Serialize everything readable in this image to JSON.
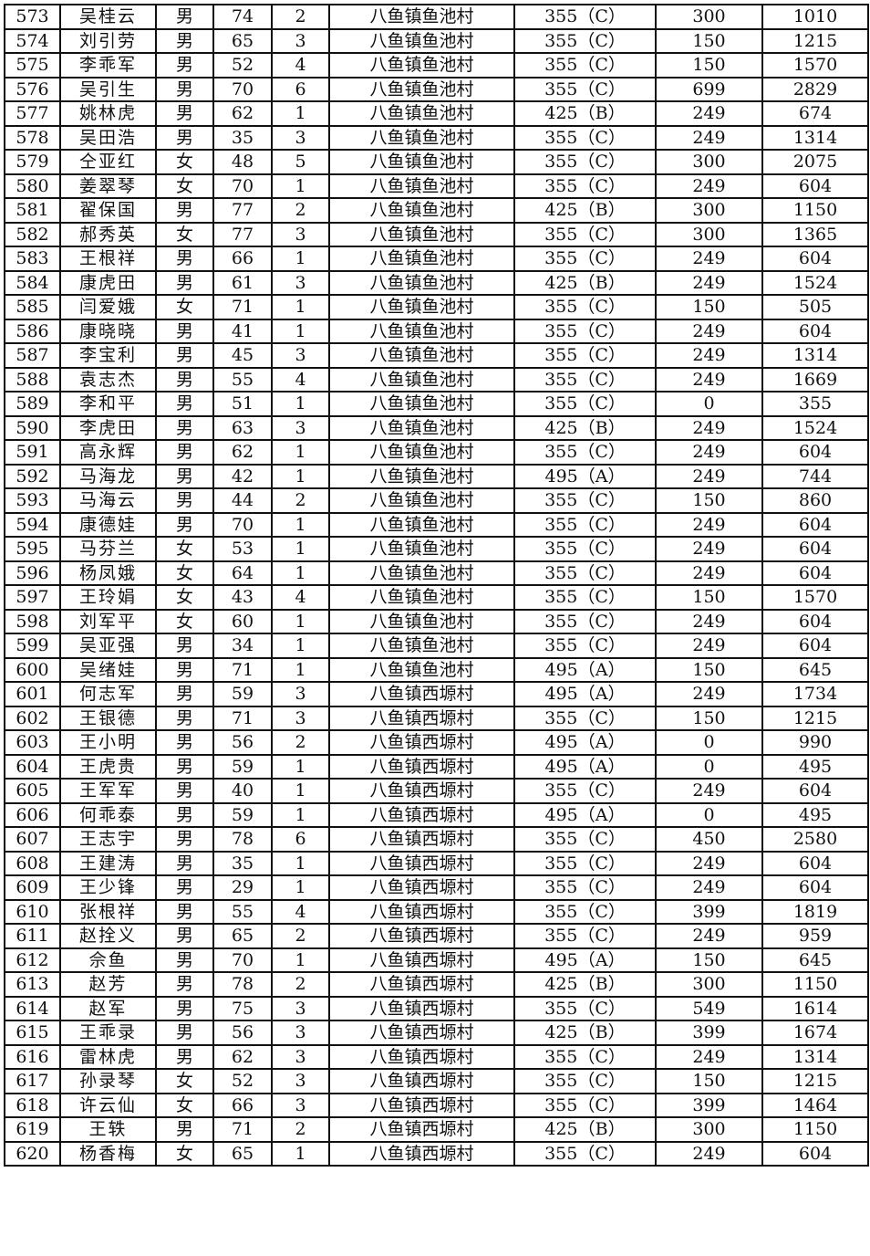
{
  "rows": [
    [
      "573",
      "吴桂云",
      "男",
      "74",
      "2",
      "八鱼镇鱼池村",
      "355（C）",
      "300",
      "1010"
    ],
    [
      "574",
      "刘引劳",
      "男",
      "65",
      "3",
      "八鱼镇鱼池村",
      "355（C）",
      "150",
      "1215"
    ],
    [
      "575",
      "李乖军",
      "男",
      "52",
      "4",
      "八鱼镇鱼池村",
      "355（C）",
      "150",
      "1570"
    ],
    [
      "576",
      "吴引生",
      "男",
      "70",
      "6",
      "八鱼镇鱼池村",
      "355（C）",
      "699",
      "2829"
    ],
    [
      "577",
      "姚林虎",
      "男",
      "62",
      "1",
      "八鱼镇鱼池村",
      "425（B）",
      "249",
      "674"
    ],
    [
      "578",
      "吴田浩",
      "男",
      "35",
      "3",
      "八鱼镇鱼池村",
      "355（C）",
      "249",
      "1314"
    ],
    [
      "579",
      "仝亚红",
      "女",
      "48",
      "5",
      "八鱼镇鱼池村",
      "355（C）",
      "300",
      "2075"
    ],
    [
      "580",
      "姜翠琴",
      "女",
      "70",
      "1",
      "八鱼镇鱼池村",
      "355（C）",
      "249",
      "604"
    ],
    [
      "581",
      "翟保国",
      "男",
      "77",
      "2",
      "八鱼镇鱼池村",
      "425（B）",
      "300",
      "1150"
    ],
    [
      "582",
      "郝秀英",
      "女",
      "77",
      "3",
      "八鱼镇鱼池村",
      "355（C）",
      "300",
      "1365"
    ],
    [
      "583",
      "王根祥",
      "男",
      "66",
      "1",
      "八鱼镇鱼池村",
      "355（C）",
      "249",
      "604"
    ],
    [
      "584",
      "康虎田",
      "男",
      "61",
      "3",
      "八鱼镇鱼池村",
      "425（B）",
      "249",
      "1524"
    ],
    [
      "585",
      "闫爱娥",
      "女",
      "71",
      "1",
      "八鱼镇鱼池村",
      "355（C）",
      "150",
      "505"
    ],
    [
      "586",
      "康晓晓",
      "男",
      "41",
      "1",
      "八鱼镇鱼池村",
      "355（C）",
      "249",
      "604"
    ],
    [
      "587",
      "李宝利",
      "男",
      "45",
      "3",
      "八鱼镇鱼池村",
      "355（C）",
      "249",
      "1314"
    ],
    [
      "588",
      "袁志杰",
      "男",
      "55",
      "4",
      "八鱼镇鱼池村",
      "355（C）",
      "249",
      "1669"
    ],
    [
      "589",
      "李和平",
      "男",
      "51",
      "1",
      "八鱼镇鱼池村",
      "355（C）",
      "0",
      "355"
    ],
    [
      "590",
      "李虎田",
      "男",
      "63",
      "3",
      "八鱼镇鱼池村",
      "425（B）",
      "249",
      "1524"
    ],
    [
      "591",
      "高永辉",
      "男",
      "62",
      "1",
      "八鱼镇鱼池村",
      "355（C）",
      "249",
      "604"
    ],
    [
      "592",
      "马海龙",
      "男",
      "42",
      "1",
      "八鱼镇鱼池村",
      "495（A）",
      "249",
      "744"
    ],
    [
      "593",
      "马海云",
      "男",
      "44",
      "2",
      "八鱼镇鱼池村",
      "355（C）",
      "150",
      "860"
    ],
    [
      "594",
      "康德娃",
      "男",
      "70",
      "1",
      "八鱼镇鱼池村",
      "355（C）",
      "249",
      "604"
    ],
    [
      "595",
      "马芬兰",
      "女",
      "53",
      "1",
      "八鱼镇鱼池村",
      "355（C）",
      "249",
      "604"
    ],
    [
      "596",
      "杨凤娥",
      "女",
      "64",
      "1",
      "八鱼镇鱼池村",
      "355（C）",
      "249",
      "604"
    ],
    [
      "597",
      "王玲娟",
      "女",
      "43",
      "4",
      "八鱼镇鱼池村",
      "355（C）",
      "150",
      "1570"
    ],
    [
      "598",
      "刘军平",
      "女",
      "60",
      "1",
      "八鱼镇鱼池村",
      "355（C）",
      "249",
      "604"
    ],
    [
      "599",
      "吴亚强",
      "男",
      "34",
      "1",
      "八鱼镇鱼池村",
      "355（C）",
      "249",
      "604"
    ],
    [
      "600",
      "吴绪娃",
      "男",
      "71",
      "1",
      "八鱼镇鱼池村",
      "495（A）",
      "150",
      "645"
    ],
    [
      "601",
      "何志军",
      "男",
      "59",
      "3",
      "八鱼镇西塬村",
      "495（A）",
      "249",
      "1734"
    ],
    [
      "602",
      "王银德",
      "男",
      "71",
      "3",
      "八鱼镇西塬村",
      "355（C）",
      "150",
      "1215"
    ],
    [
      "603",
      "王小明",
      "男",
      "56",
      "2",
      "八鱼镇西塬村",
      "495（A）",
      "0",
      "990"
    ],
    [
      "604",
      "王虎贵",
      "男",
      "59",
      "1",
      "八鱼镇西塬村",
      "495（A）",
      "0",
      "495"
    ],
    [
      "605",
      "王军军",
      "男",
      "40",
      "1",
      "八鱼镇西塬村",
      "355（C）",
      "249",
      "604"
    ],
    [
      "606",
      "何乖泰",
      "男",
      "59",
      "1",
      "八鱼镇西塬村",
      "495（A）",
      "0",
      "495"
    ],
    [
      "607",
      "王志宇",
      "男",
      "78",
      "6",
      "八鱼镇西塬村",
      "355（C）",
      "450",
      "2580"
    ],
    [
      "608",
      "王建涛",
      "男",
      "35",
      "1",
      "八鱼镇西塬村",
      "355（C）",
      "249",
      "604"
    ],
    [
      "609",
      "王少锋",
      "男",
      "29",
      "1",
      "八鱼镇西塬村",
      "355（C）",
      "249",
      "604"
    ],
    [
      "610",
      "张根祥",
      "男",
      "55",
      "4",
      "八鱼镇西塬村",
      "355（C）",
      "399",
      "1819"
    ],
    [
      "611",
      "赵拴义",
      "男",
      "65",
      "2",
      "八鱼镇西塬村",
      "355（C）",
      "249",
      "959"
    ],
    [
      "612",
      "佘鱼",
      "男",
      "70",
      "1",
      "八鱼镇西塬村",
      "495（A）",
      "150",
      "645"
    ],
    [
      "613",
      "赵芳",
      "男",
      "78",
      "2",
      "八鱼镇西塬村",
      "425（B）",
      "300",
      "1150"
    ],
    [
      "614",
      "赵军",
      "男",
      "75",
      "3",
      "八鱼镇西塬村",
      "355（C）",
      "549",
      "1614"
    ],
    [
      "615",
      "王乖录",
      "男",
      "56",
      "3",
      "八鱼镇西塬村",
      "425（B）",
      "399",
      "1674"
    ],
    [
      "616",
      "雷林虎",
      "男",
      "62",
      "3",
      "八鱼镇西塬村",
      "355（C）",
      "249",
      "1314"
    ],
    [
      "617",
      "孙录琴",
      "女",
      "52",
      "3",
      "八鱼镇西塬村",
      "355（C）",
      "150",
      "1215"
    ],
    [
      "618",
      "许云仙",
      "女",
      "66",
      "3",
      "八鱼镇西塬村",
      "355（C）",
      "399",
      "1464"
    ],
    [
      "619",
      "王轶",
      "男",
      "71",
      "2",
      "八鱼镇西塬村",
      "425（B）",
      "300",
      "1150"
    ],
    [
      "620",
      "杨香梅",
      "女",
      "65",
      "1",
      "八鱼镇西塬村",
      "355（C）",
      "249",
      "604"
    ]
  ]
}
